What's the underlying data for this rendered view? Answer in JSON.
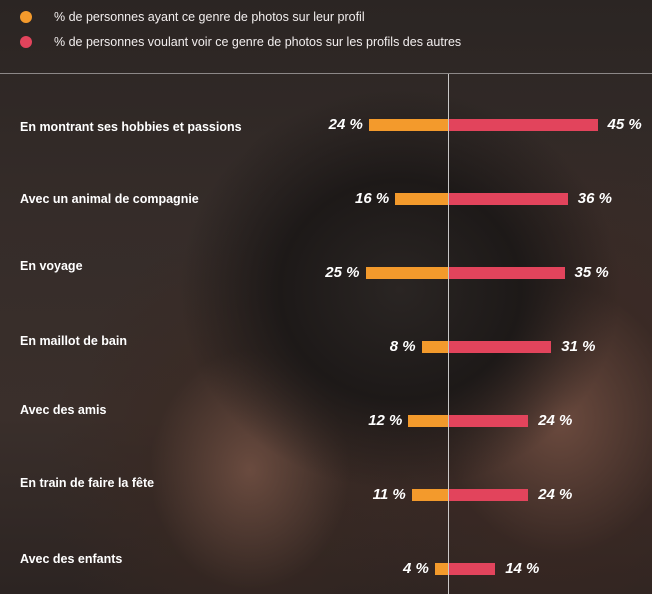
{
  "colors": {
    "left": "#f39a2c",
    "right": "#e2445c"
  },
  "legend": [
    {
      "label": "% de personnes ayant ce genre de photos sur leur profil",
      "color": "#f39a2c"
    },
    {
      "label": "% de personnes voulant voir ce genre de photos sur les profils des autres",
      "color": "#e2445c"
    }
  ],
  "chart_data": {
    "type": "bar",
    "orientation": "horizontal-diverging",
    "categories": [
      "En montrant ses hobbies et passions",
      "Avec un animal de compagnie",
      "En voyage",
      "En maillot de bain",
      "Avec des amis",
      "En train de faire la fête",
      "Avec des enfants"
    ],
    "series": [
      {
        "name": "% de personnes ayant ce genre de photos sur leur profil",
        "values": [
          24,
          16,
          25,
          8,
          12,
          11,
          4
        ],
        "labels": [
          "24 %",
          "16 %",
          "25 %",
          "8 %",
          "12 %",
          "11 %",
          "4 %"
        ]
      },
      {
        "name": "% de personnes voulant voir ce genre de photos sur les profils des autres",
        "values": [
          45,
          36,
          35,
          31,
          24,
          24,
          14
        ],
        "labels": [
          "45 %",
          "36 %",
          "35 %",
          "31 %",
          "24 %",
          "24 %",
          "14 %"
        ]
      }
    ],
    "unit": "%",
    "legend_position": "top-left",
    "grid": false
  }
}
